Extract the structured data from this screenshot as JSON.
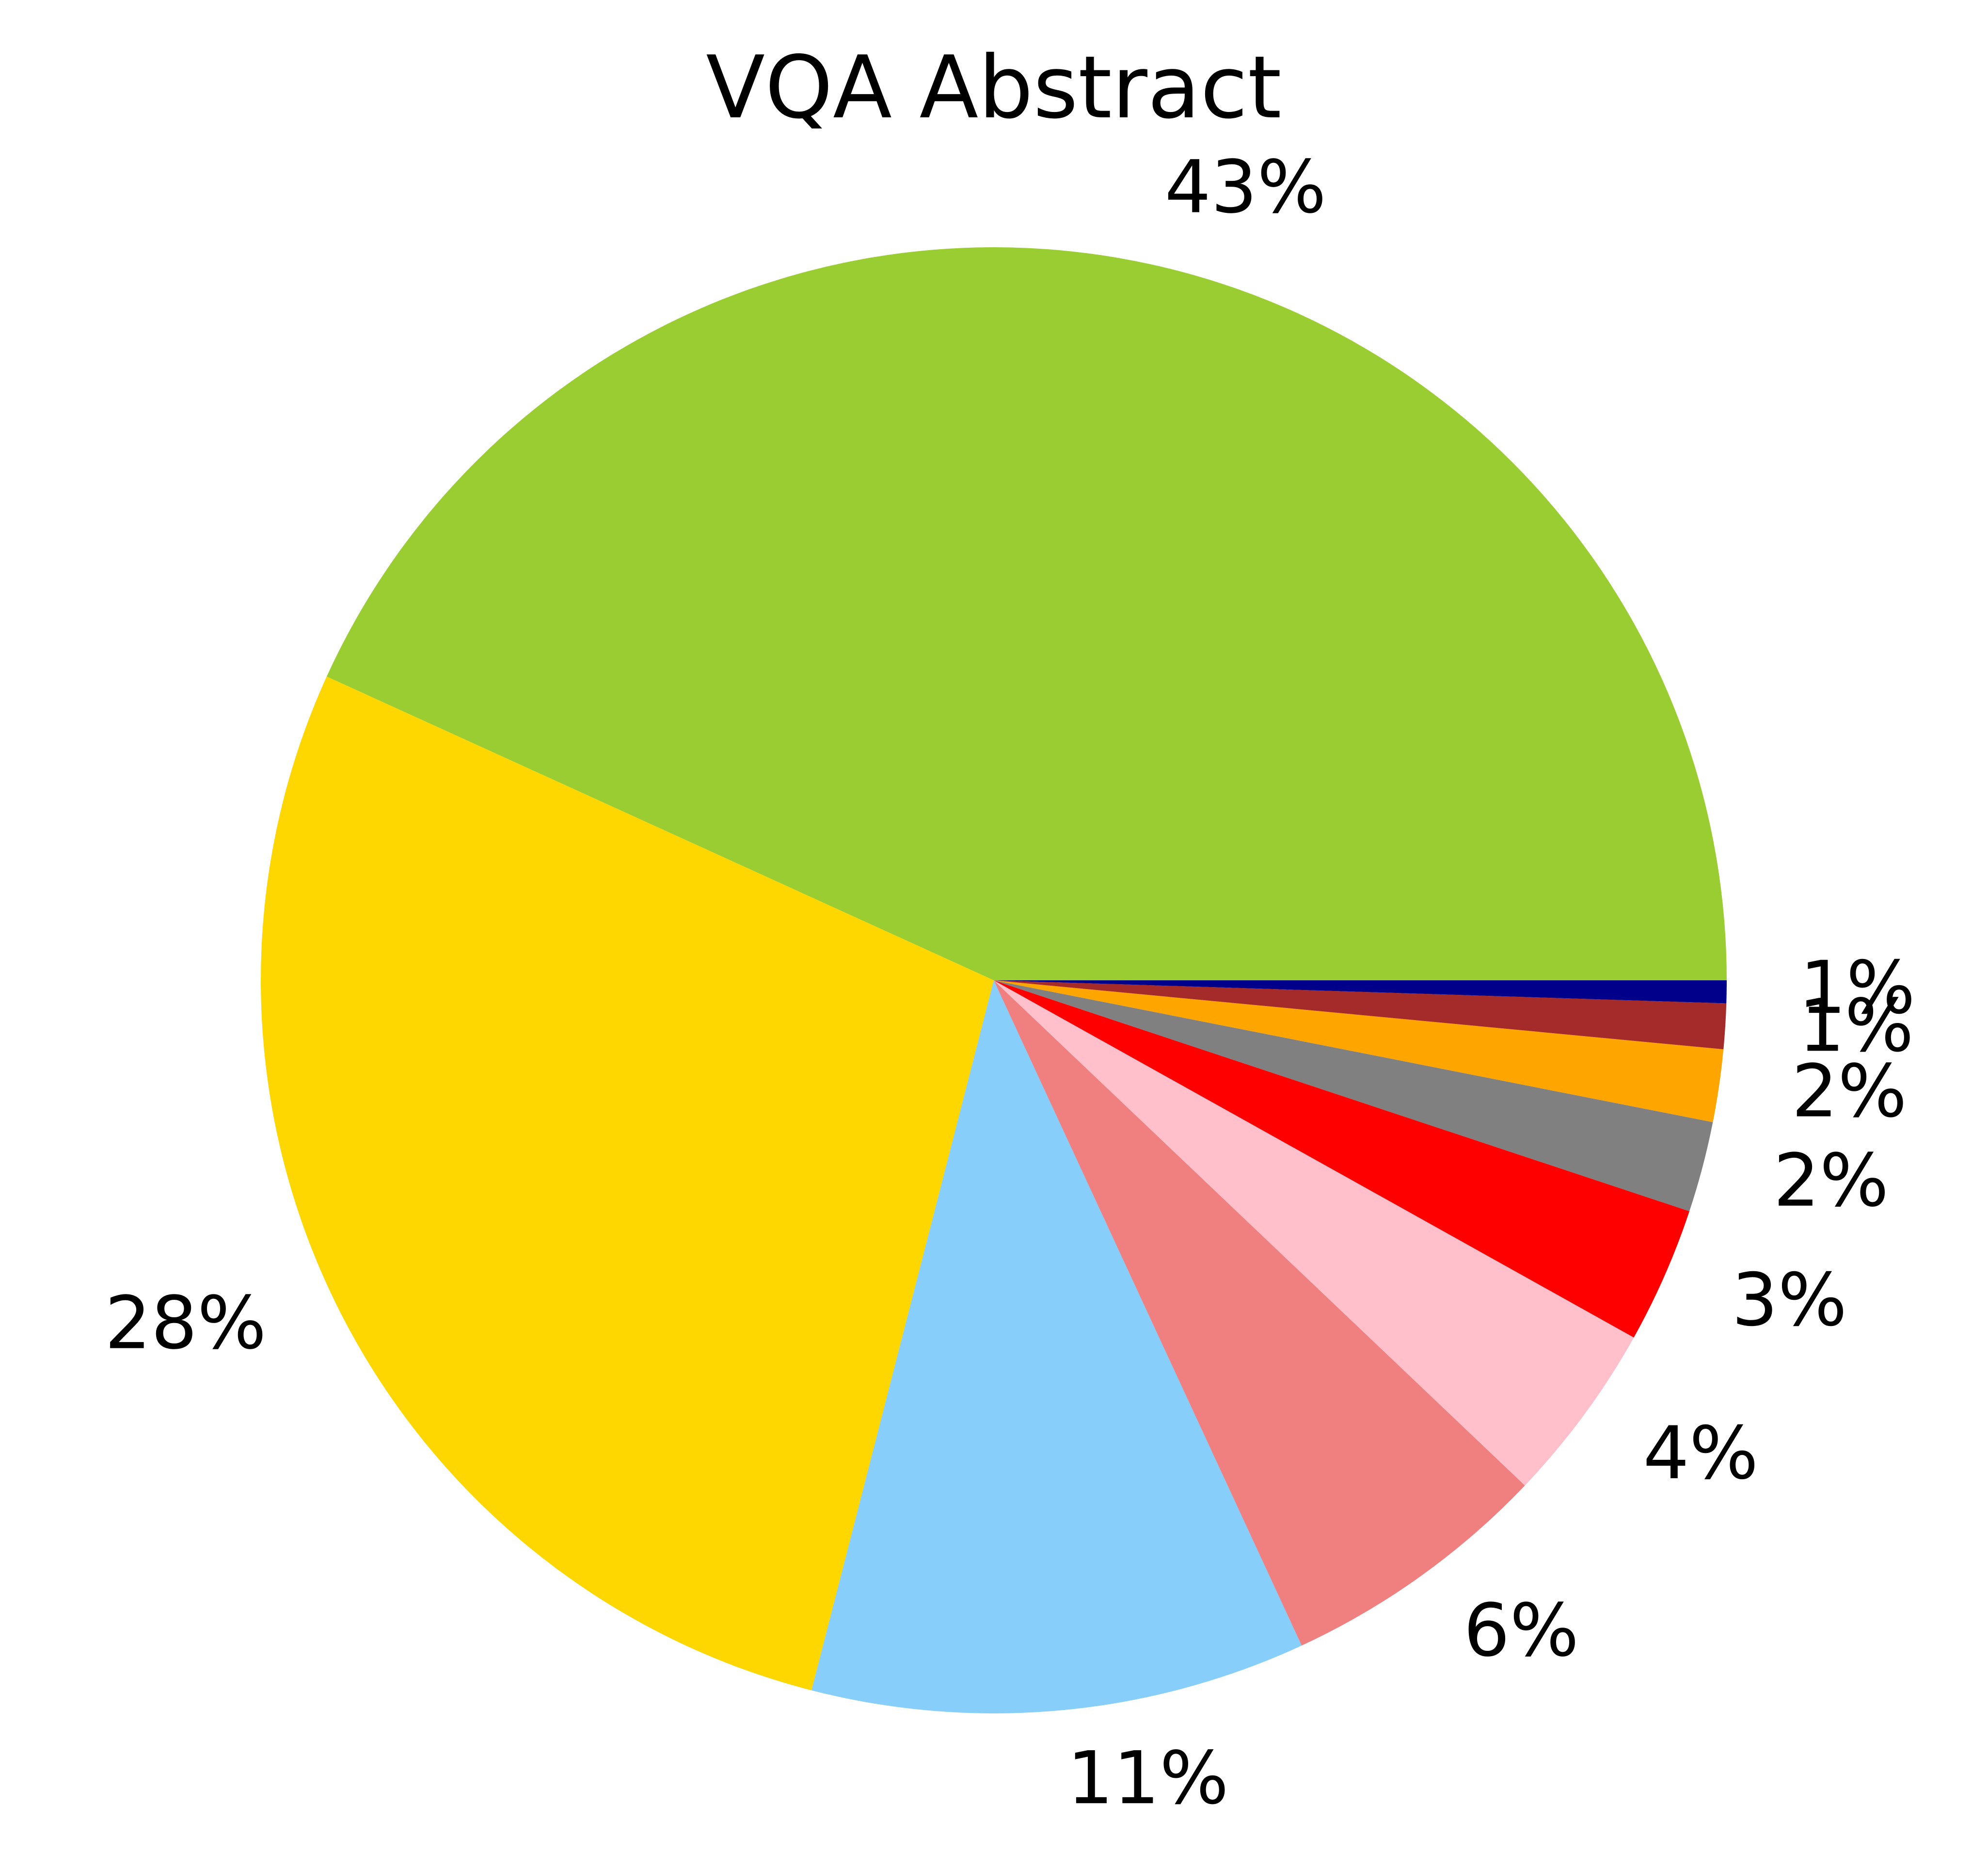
{
  "chart_data": {
    "type": "pie",
    "title": "VQA Abstract",
    "start_angle_deg": 0,
    "direction": "counterclockwise",
    "slices": [
      {
        "value": 43.2,
        "label": "43%",
        "color": "#9ACD32"
      },
      {
        "value": 27.8,
        "label": "28%",
        "color": "#FFD700"
      },
      {
        "value": 10.9,
        "label": "11%",
        "color": "#87CEFA"
      },
      {
        "value": 6.0,
        "label": "6%",
        "color": "#F08080"
      },
      {
        "value": 4.0,
        "label": "4%",
        "color": "#FFC0CB"
      },
      {
        "value": 3.0,
        "label": "3%",
        "color": "#FF0000"
      },
      {
        "value": 2.0,
        "label": "2%",
        "color": "#808080"
      },
      {
        "value": 1.6,
        "label": "2%",
        "color": "#FFA500"
      },
      {
        "value": 1.0,
        "label": "1%",
        "color": "#A52A2A"
      },
      {
        "value": 0.5,
        "label": "1%",
        "color": "#00008B"
      }
    ],
    "legend": false
  }
}
